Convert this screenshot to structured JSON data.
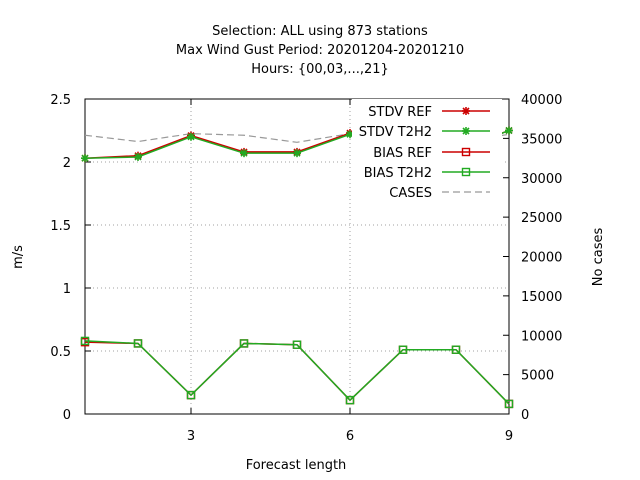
{
  "chart_data": {
    "type": "line",
    "title_lines": [
      "Selection: ALL using   873 stations",
      "Max Wind Gust   Period: 20201204-20201210",
      "Hours: {00,03,...,21}"
    ],
    "xlabel": "Forecast length",
    "ylabel": "m/s",
    "y2label": "No cases",
    "xlim": [
      1,
      9
    ],
    "ylim": [
      0,
      2.5
    ],
    "y2lim": [
      0,
      40000
    ],
    "x_ticks": [
      3,
      6,
      9
    ],
    "y_ticks": [
      0,
      0.5,
      1,
      1.5,
      2,
      2.5
    ],
    "y_tick_labels": [
      "0",
      "0.5",
      "1",
      "1.5",
      "2",
      "2.5"
    ],
    "y2_ticks": [
      0,
      5000,
      10000,
      15000,
      20000,
      25000,
      30000,
      35000,
      40000
    ],
    "grid": true,
    "legend_position": "top-right",
    "x": [
      1,
      2,
      3,
      4,
      5,
      6,
      7,
      8,
      9
    ],
    "series": [
      {
        "name": "STDV REF",
        "axis": "y",
        "color": "#cc0000",
        "marker": "star",
        "values": [
          2.03,
          2.05,
          2.21,
          2.08,
          2.08,
          2.23,
          2.08,
          2.09,
          2.25
        ]
      },
      {
        "name": "STDV T2H2",
        "axis": "y",
        "color": "#22aa22",
        "marker": "star",
        "values": [
          2.03,
          2.04,
          2.2,
          2.07,
          2.07,
          2.22,
          2.09,
          2.08,
          2.25
        ]
      },
      {
        "name": "BIAS REF",
        "axis": "y",
        "color": "#cc0000",
        "marker": "square",
        "values": [
          0.57,
          0.56,
          0.15,
          0.56,
          0.55,
          0.11,
          0.51,
          0.51,
          0.08
        ]
      },
      {
        "name": "BIAS T2H2",
        "axis": "y",
        "color": "#22aa22",
        "marker": "square",
        "values": [
          0.58,
          0.56,
          0.15,
          0.56,
          0.55,
          0.11,
          0.51,
          0.51,
          0.08
        ]
      },
      {
        "name": "CASES",
        "axis": "y2",
        "color": "#999999",
        "marker": "none",
        "dashed": true,
        "values": [
          35400,
          34600,
          35600,
          35400,
          34500,
          35600,
          34800,
          34600,
          35500
        ]
      }
    ]
  }
}
